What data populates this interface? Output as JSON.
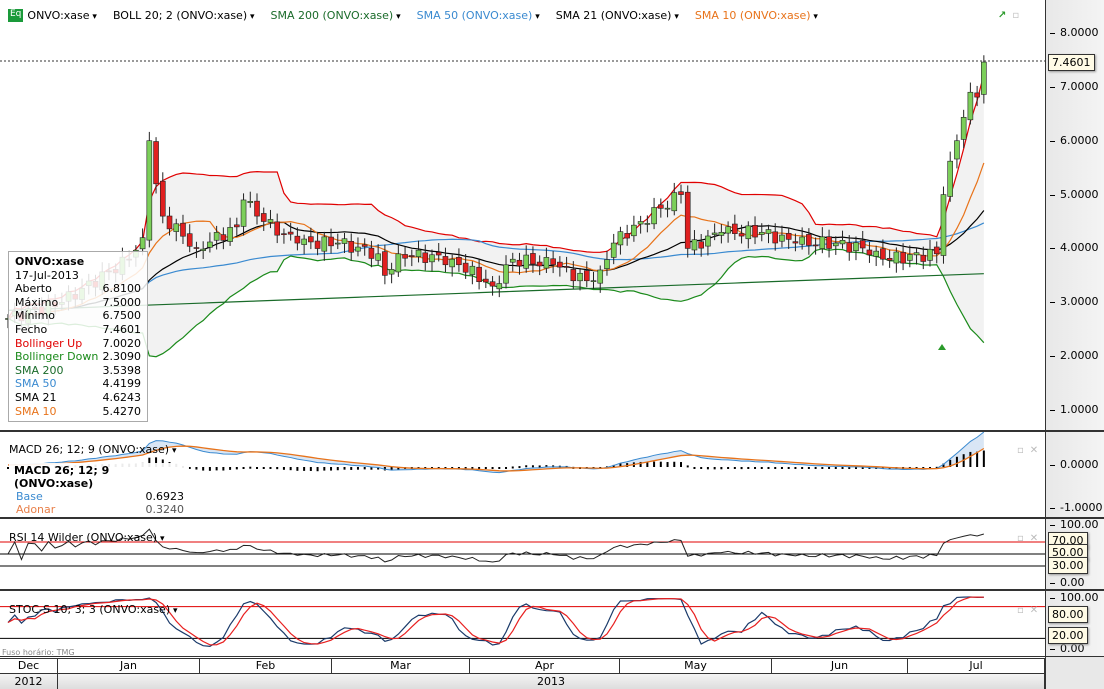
{
  "header": {
    "items": [
      {
        "label": "ONVO:xase",
        "color": "#000000"
      },
      {
        "label": "BOLL 20; 2 (ONVO:xase)",
        "color": "#000000"
      },
      {
        "label": "SMA 200 (ONVO:xase)",
        "color": "#1a6b2a"
      },
      {
        "label": "SMA 50 (ONVO:xase)",
        "color": "#3a8ad0"
      },
      {
        "label": "SMA 21 (ONVO:xase)",
        "color": "#000000"
      },
      {
        "label": "SMA 10 (ONVO:xase)",
        "color": "#e8731a"
      }
    ],
    "logo": "Eq"
  },
  "legend": {
    "title": "ONVO:xase",
    "date": "17-Jul-2013",
    "rows": [
      {
        "label": "Aberto",
        "value": "6.8100",
        "color": "#000"
      },
      {
        "label": "Máximo",
        "value": "7.5000",
        "color": "#000"
      },
      {
        "label": "Mínimo",
        "value": "6.7500",
        "color": "#000"
      },
      {
        "label": "Fecho",
        "value": "7.4601",
        "color": "#000"
      },
      {
        "label": "Bollinger Up",
        "value": "7.0020",
        "color": "#e00000"
      },
      {
        "label": "Bollinger Down",
        "value": "2.3090",
        "color": "#1a8a1a"
      },
      {
        "label": "SMA 200",
        "value": "3.5398",
        "color": "#1a6b2a"
      },
      {
        "label": "SMA 50",
        "value": "4.4199",
        "color": "#3a8ad0"
      },
      {
        "label": "SMA 21",
        "value": "4.6243",
        "color": "#000"
      },
      {
        "label": "SMA 10",
        "value": "5.4270",
        "color": "#e8731a"
      }
    ]
  },
  "price_axis": {
    "ticks": [
      "8.0000",
      "7.0000",
      "6.0000",
      "5.0000",
      "4.0000",
      "3.0000",
      "2.0000",
      "1.0000"
    ],
    "last": "7.4601"
  },
  "macd": {
    "label": "MACD 26; 12; 9 (ONVO:xase)",
    "legend_title": "MACD 26; 12; 9 (ONVO:xase)",
    "base_label": "Base",
    "base_value": "0.6923",
    "signal_label": "Adonar",
    "signal_value": "0.3240",
    "ticks": [
      "0.0000",
      "-1.0000"
    ]
  },
  "rsi": {
    "label": "RSI 14 Wilder (ONVO:xase)",
    "ticks": [
      "100.00",
      "0.00"
    ],
    "tags": [
      "70.00",
      "50.00",
      "30.00"
    ]
  },
  "stoch": {
    "label": "STOC-S 10; 3; 3 (ONVO:xase)",
    "ticks": [
      "100.00",
      "0.00"
    ],
    "tags": [
      "80.00",
      "20.00"
    ]
  },
  "time_axis": {
    "timezone": "Fuso horário: TMG",
    "months": [
      "Dec",
      "Jan",
      "Feb",
      "Mar",
      "Apr",
      "May",
      "Jun",
      "Jul"
    ],
    "years": [
      "2012",
      "2013"
    ]
  },
  "chart_data": {
    "type": "candlestick",
    "keypoints": [
      [
        0,
        2.7
      ],
      [
        8,
        3.0
      ],
      [
        18,
        3.8
      ],
      [
        20,
        4.2
      ],
      [
        21,
        6.0
      ],
      [
        22,
        5.2
      ],
      [
        23,
        4.6
      ],
      [
        28,
        4.0
      ],
      [
        34,
        4.4
      ],
      [
        35,
        4.9
      ],
      [
        38,
        4.5
      ],
      [
        43,
        4.1
      ],
      [
        49,
        4.1
      ],
      [
        55,
        3.9
      ],
      [
        56,
        3.5
      ],
      [
        58,
        3.9
      ],
      [
        66,
        3.8
      ],
      [
        72,
        3.3
      ],
      [
        75,
        3.8
      ],
      [
        81,
        3.7
      ],
      [
        86,
        3.4
      ],
      [
        88,
        3.6
      ],
      [
        90,
        4.1
      ],
      [
        94,
        4.5
      ],
      [
        100,
        5.0
      ],
      [
        101,
        4.0
      ],
      [
        106,
        4.3
      ],
      [
        112,
        4.3
      ],
      [
        117,
        4.1
      ],
      [
        123,
        4.1
      ],
      [
        129,
        3.95
      ],
      [
        130,
        3.8
      ],
      [
        138,
        3.9
      ],
      [
        139,
        5.0
      ],
      [
        141,
        6.0
      ],
      [
        143,
        6.9
      ],
      [
        144,
        6.81
      ],
      [
        145,
        7.46
      ]
    ],
    "ylim": [
      0.5,
      8.5
    ]
  }
}
